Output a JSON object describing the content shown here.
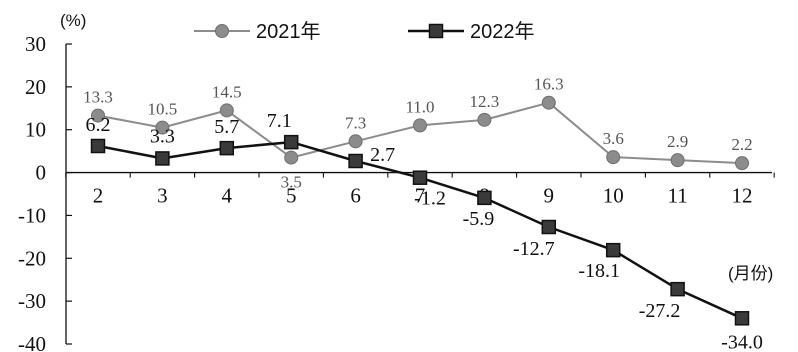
{
  "chart_data": {
    "type": "line",
    "x": [
      "2",
      "3",
      "4",
      "5",
      "6",
      "7",
      "8",
      "9",
      "10",
      "11",
      "12"
    ],
    "series": [
      {
        "name": "2021年",
        "values": [
          13.3,
          10.5,
          14.5,
          3.5,
          7.3,
          11.0,
          12.3,
          16.3,
          3.6,
          2.9,
          2.2
        ],
        "labels": [
          "13.3",
          "10.5",
          "14.5",
          "3.5",
          "7.3",
          "11.0",
          "12.3",
          "16.3",
          "3.6",
          "2.9",
          "2.2"
        ],
        "color": "#8c8c8c",
        "marker": "circle"
      },
      {
        "name": "2022年",
        "values": [
          6.2,
          3.3,
          5.7,
          7.1,
          2.7,
          -1.2,
          -5.9,
          -12.7,
          -18.1,
          -27.2,
          -34.0
        ],
        "labels": [
          "6.2",
          "3.3",
          "5.7",
          "7.1",
          "2.7",
          "-1.2",
          "-5.9",
          "-12.7",
          "-18.1",
          "-27.2",
          "-34.0"
        ],
        "color": "#111111",
        "marker": "square"
      }
    ],
    "ylim": [
      -40,
      30
    ],
    "yticks": [
      "30",
      "20",
      "10",
      "0",
      "-10",
      "-20",
      "-30",
      "-40"
    ],
    "ylabel": "(%)",
    "xlabel": "(月份)",
    "legend_position": "top",
    "grid": false
  }
}
